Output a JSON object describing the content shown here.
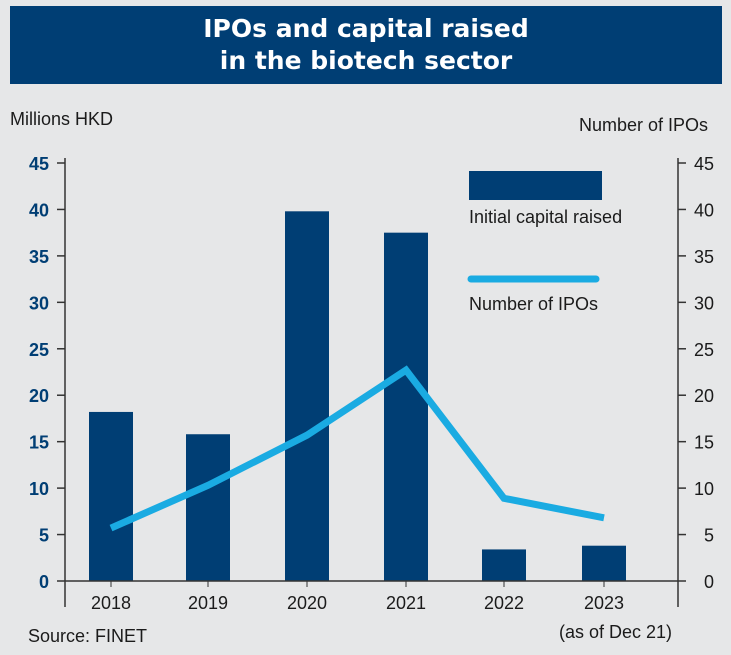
{
  "title_line1": "IPOs and capital raised",
  "title_line2": "in the biotech sector",
  "source": "Source: FINET",
  "note": "(as of Dec 21)",
  "colors": {
    "bar": "#003e74",
    "line": "#1aabe2",
    "header_bg": "#003e74",
    "background": "#e6e7e8"
  },
  "chart_data": {
    "type": "bar",
    "categories": [
      "2018",
      "2019",
      "2020",
      "2021",
      "2022",
      "2023"
    ],
    "series": [
      {
        "name": "Initial capital raised",
        "type": "bar",
        "axis": "left",
        "values": [
          18.2,
          15.8,
          39.8,
          37.5,
          3.4,
          3.8
        ]
      },
      {
        "name": "Number of IPOs",
        "type": "line",
        "axis": "right",
        "values": [
          5.7,
          10.3,
          15.7,
          22.7,
          8.9,
          6.8
        ]
      }
    ],
    "ylabel_left": "Millions HKD",
    "ylabel_right": "Number of IPOs",
    "ylim_left": [
      0,
      45
    ],
    "ylim_right": [
      0,
      45
    ],
    "yticks": [
      0,
      5,
      10,
      15,
      20,
      25,
      30,
      35,
      40,
      45
    ],
    "legend_position": "top-right",
    "grid": false
  }
}
